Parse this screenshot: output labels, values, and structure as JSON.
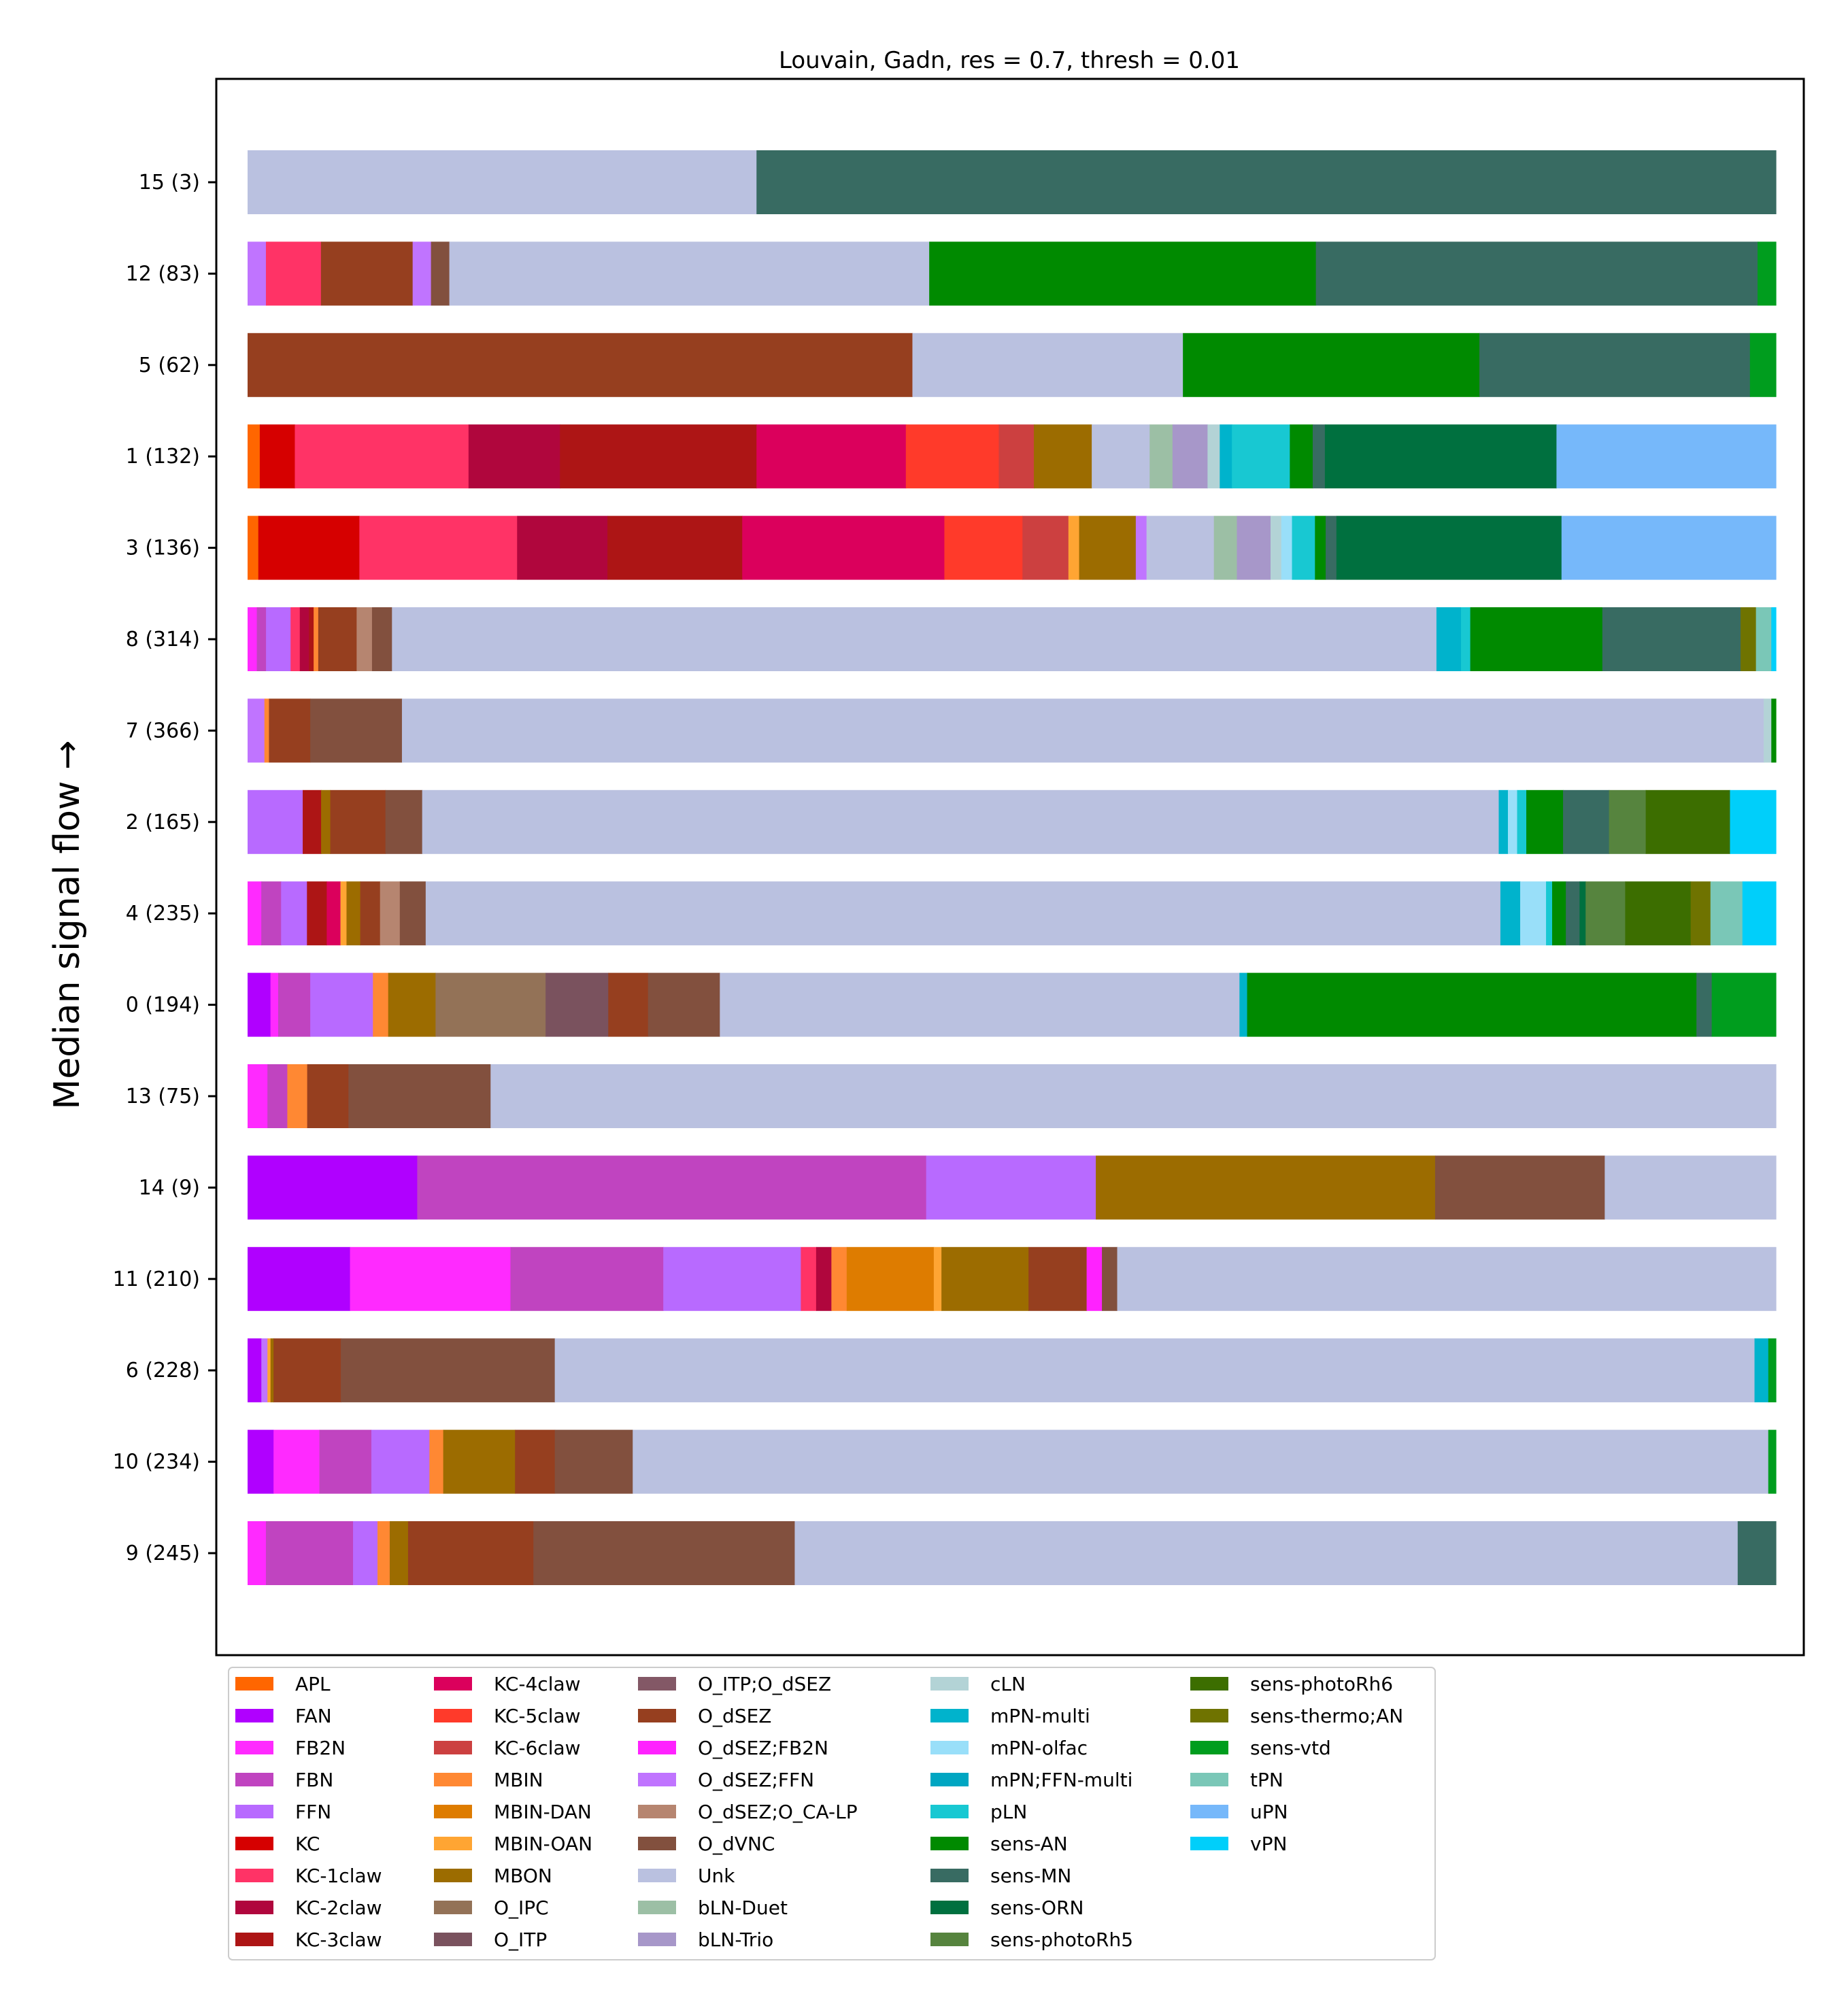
{
  "chart_data": {
    "type": "bar",
    "orientation": "horizontal",
    "stacked": true,
    "normalized": true,
    "title": "Louvain, Gadn, res = 0.7, thresh = 0.01",
    "ylabel": "Median signal flow →",
    "xlabel": "",
    "xlim": [
      0,
      1
    ],
    "grid": false,
    "legend_position": "bottom",
    "legend": [
      {
        "name": "APL",
        "color": "#ff6600"
      },
      {
        "name": "FAN",
        "color": "#b000ff"
      },
      {
        "name": "FB2N",
        "color": "#ff2aff"
      },
      {
        "name": "FBN",
        "color": "#c044c0"
      },
      {
        "name": "FFN",
        "color": "#b86aff"
      },
      {
        "name": "KC",
        "color": "#d60000"
      },
      {
        "name": "KC-1claw",
        "color": "#ff3366"
      },
      {
        "name": "KC-2claw",
        "color": "#b0063d"
      },
      {
        "name": "KC-3claw",
        "color": "#ad1515"
      },
      {
        "name": "KC-4claw",
        "color": "#db005c"
      },
      {
        "name": "KC-5claw",
        "color": "#ff3a2a"
      },
      {
        "name": "KC-6claw",
        "color": "#cc4040"
      },
      {
        "name": "MBIN",
        "color": "#ff8833"
      },
      {
        "name": "MBIN-DAN",
        "color": "#de7c00"
      },
      {
        "name": "MBIN-OAN",
        "color": "#ffa533"
      },
      {
        "name": "MBON",
        "color": "#9c6c00"
      },
      {
        "name": "O_IPC",
        "color": "#937257"
      },
      {
        "name": "O_ITP",
        "color": "#7a525e"
      },
      {
        "name": "O_ITP;O_dSEZ",
        "color": "#835866"
      },
      {
        "name": "O_dSEZ",
        "color": "#963f1f"
      },
      {
        "name": "O_dSEZ;FB2N",
        "color": "#ff22ff"
      },
      {
        "name": "O_dSEZ;FFN",
        "color": "#c074ff"
      },
      {
        "name": "O_dSEZ;O_CA-LP",
        "color": "#b68570"
      },
      {
        "name": "O_dVNC",
        "color": "#82503e"
      },
      {
        "name": "Unk",
        "color": "#bac1e0"
      },
      {
        "name": "bLN-Duet",
        "color": "#9cbfa5"
      },
      {
        "name": "bLN-Trio",
        "color": "#a797c9"
      },
      {
        "name": "cLN",
        "color": "#b3d3d6"
      },
      {
        "name": "mPN-multi",
        "color": "#00b3cc"
      },
      {
        "name": "mPN-olfac",
        "color": "#99dff9"
      },
      {
        "name": "mPN;FFN-multi",
        "color": "#00a6c2"
      },
      {
        "name": "pLN",
        "color": "#18c8d2"
      },
      {
        "name": "sens-AN",
        "color": "#008a00"
      },
      {
        "name": "sens-MN",
        "color": "#386b62"
      },
      {
        "name": "sens-ORN",
        "color": "#00703f"
      },
      {
        "name": "sens-photoRh5",
        "color": "#56843e"
      },
      {
        "name": "sens-photoRh6",
        "color": "#3c6e00"
      },
      {
        "name": "sens-thermo;AN",
        "color": "#6f7300"
      },
      {
        "name": "sens-vtd",
        "color": "#009d1e"
      },
      {
        "name": "tPN",
        "color": "#7ac7b7"
      },
      {
        "name": "uPN",
        "color": "#76b8fa"
      },
      {
        "name": "vPN",
        "color": "#00cffa"
      }
    ],
    "categories": [
      "15 (3)",
      "12 (83)",
      "5 (62)",
      "1 (132)",
      "3 (136)",
      "8 (314)",
      "7 (366)",
      "2 (165)",
      "4 (235)",
      "0 (194)",
      "13 (75)",
      "14 (9)",
      "11 (210)",
      "6 (228)",
      "10 (234)",
      "9 (245)"
    ],
    "bars": [
      [
        [
          "Unk",
          0.333
        ],
        [
          "sens-MN",
          0.667
        ]
      ],
      [
        [
          "O_dSEZ;FFN",
          0.012
        ],
        [
          "KC-1claw",
          0.036
        ],
        [
          "O_dSEZ",
          0.06
        ],
        [
          "O_dSEZ;FFN",
          0.012
        ],
        [
          "O_dVNC",
          0.012
        ],
        [
          "Unk",
          0.314
        ],
        [
          "sens-AN",
          0.253
        ],
        [
          "sens-MN",
          0.289
        ],
        [
          "sens-vtd",
          0.012
        ]
      ],
      [
        [
          "O_dSEZ",
          0.435
        ],
        [
          "Unk",
          0.177
        ],
        [
          "sens-AN",
          0.194
        ],
        [
          "sens-MN",
          0.177
        ],
        [
          "sens-vtd",
          0.017
        ]
      ],
      [
        [
          "APL",
          0.008
        ],
        [
          "KC",
          0.023
        ],
        [
          "KC-1claw",
          0.114
        ],
        [
          "KC-2claw",
          0.06
        ],
        [
          "KC-3claw",
          0.129
        ],
        [
          "KC-4claw",
          0.098
        ],
        [
          "KC-5claw",
          0.061
        ],
        [
          "KC-6claw",
          0.023
        ],
        [
          "MBON",
          0.038
        ],
        [
          "Unk",
          0.038
        ],
        [
          "bLN-Duet",
          0.015
        ],
        [
          "bLN-Trio",
          0.023
        ],
        [
          "cLN",
          0.008
        ],
        [
          "mPN-multi",
          0.008
        ],
        [
          "pLN",
          0.038
        ],
        [
          "sens-AN",
          0.015
        ],
        [
          "sens-MN",
          0.008
        ],
        [
          "sens-ORN",
          0.152
        ],
        [
          "uPN",
          0.144
        ]
      ],
      [
        [
          "APL",
          0.007
        ],
        [
          "KC",
          0.066
        ],
        [
          "KC-1claw",
          0.103
        ],
        [
          "KC-2claw",
          0.059
        ],
        [
          "KC-3claw",
          0.088
        ],
        [
          "KC-4claw",
          0.132
        ],
        [
          "KC-5claw",
          0.051
        ],
        [
          "KC-6claw",
          0.03
        ],
        [
          "MBIN-OAN",
          0.007
        ],
        [
          "MBON",
          0.037
        ],
        [
          "O_dSEZ;FFN",
          0.007
        ],
        [
          "Unk",
          0.044
        ],
        [
          "bLN-Duet",
          0.015
        ],
        [
          "bLN-Trio",
          0.022
        ],
        [
          "cLN",
          0.007
        ],
        [
          "mPN-olfac",
          0.007
        ],
        [
          "pLN",
          0.015
        ],
        [
          "sens-AN",
          0.007
        ],
        [
          "sens-MN",
          0.007
        ],
        [
          "sens-ORN",
          0.147
        ],
        [
          "uPN",
          0.14
        ]
      ],
      [
        [
          "FB2N",
          0.006
        ],
        [
          "FBN",
          0.006
        ],
        [
          "FFN",
          0.016
        ],
        [
          "KC-1claw",
          0.006
        ],
        [
          "KC-2claw",
          0.006
        ],
        [
          "KC-3claw",
          0.003
        ],
        [
          "MBIN",
          0.003
        ],
        [
          "O_dSEZ",
          0.025
        ],
        [
          "O_dSEZ;O_CA-LP",
          0.01
        ],
        [
          "O_dVNC",
          0.013
        ],
        [
          "Unk",
          0.68
        ],
        [
          "mPN-multi",
          0.016
        ],
        [
          "pLN",
          0.006
        ],
        [
          "sens-AN",
          0.086
        ],
        [
          "sens-MN",
          0.09
        ],
        [
          "sens-thermo;AN",
          0.01
        ],
        [
          "tPN",
          0.01
        ],
        [
          "vPN",
          0.003
        ]
      ],
      [
        [
          "O_dSEZ;FFN",
          0.011
        ],
        [
          "MBIN",
          0.003
        ],
        [
          "O_dSEZ",
          0.027
        ],
        [
          "O_dVNC",
          0.06
        ],
        [
          "Unk",
          0.891
        ],
        [
          "cLN",
          0.005
        ],
        [
          "sens-AN",
          0.003
        ]
      ],
      [
        [
          "FFN",
          0.036
        ],
        [
          "KC-3claw",
          0.012
        ],
        [
          "MBON",
          0.006
        ],
        [
          "O_dSEZ",
          0.036
        ],
        [
          "O_dVNC",
          0.024
        ],
        [
          "Unk",
          0.703
        ],
        [
          "mPN-multi",
          0.006
        ],
        [
          "mPN-olfac",
          0.006
        ],
        [
          "pLN",
          0.006
        ],
        [
          "sens-AN",
          0.024
        ],
        [
          "sens-MN",
          0.03
        ],
        [
          "sens-photoRh5",
          0.024
        ],
        [
          "sens-photoRh6",
          0.055
        ],
        [
          "vPN",
          0.03
        ]
      ],
      [
        [
          "FB2N",
          0.009
        ],
        [
          "FBN",
          0.013
        ],
        [
          "FFN",
          0.017
        ],
        [
          "KC-3claw",
          0.013
        ],
        [
          "KC-4claw",
          0.009
        ],
        [
          "MBIN-OAN",
          0.004
        ],
        [
          "MBON",
          0.009
        ],
        [
          "O_dSEZ",
          0.013
        ],
        [
          "O_dSEZ;O_CA-LP",
          0.013
        ],
        [
          "O_dVNC",
          0.017
        ],
        [
          "Unk",
          0.706
        ],
        [
          "mPN-multi",
          0.013
        ],
        [
          "mPN-olfac",
          0.017
        ],
        [
          "pLN",
          0.004
        ],
        [
          "sens-AN",
          0.009
        ],
        [
          "sens-MN",
          0.009
        ],
        [
          "sens-ORN",
          0.004
        ],
        [
          "sens-photoRh5",
          0.026
        ],
        [
          "sens-photoRh6",
          0.043
        ],
        [
          "sens-thermo;AN",
          0.013
        ],
        [
          "tPN",
          0.021
        ],
        [
          "vPN",
          0.022
        ]
      ],
      [
        [
          "FAN",
          0.015
        ],
        [
          "FB2N",
          0.005
        ],
        [
          "FBN",
          0.021
        ],
        [
          "FFN",
          0.041
        ],
        [
          "MBIN",
          0.01
        ],
        [
          "MBON",
          0.031
        ],
        [
          "O_IPC",
          0.072
        ],
        [
          "O_ITP",
          0.041
        ],
        [
          "O_dSEZ",
          0.026
        ],
        [
          "O_dVNC",
          0.047
        ],
        [
          "Unk",
          0.34
        ],
        [
          "mPN-multi",
          0.005
        ],
        [
          "sens-AN",
          0.294
        ],
        [
          "sens-MN",
          0.01
        ],
        [
          "sens-vtd",
          0.042
        ]
      ],
      [
        [
          "FB2N",
          0.013
        ],
        [
          "FBN",
          0.013
        ],
        [
          "MBIN",
          0.013
        ],
        [
          "O_dSEZ",
          0.027
        ],
        [
          "O_dVNC",
          0.093
        ],
        [
          "Unk",
          0.841
        ]
      ],
      [
        [
          "FAN",
          0.111
        ],
        [
          "FBN",
          0.333
        ],
        [
          "FFN",
          0.111
        ],
        [
          "MBON",
          0.222
        ],
        [
          "O_dVNC",
          0.111
        ],
        [
          "Unk",
          0.112
        ]
      ],
      [
        [
          "FAN",
          0.067
        ],
        [
          "FB2N",
          0.105
        ],
        [
          "FBN",
          0.1
        ],
        [
          "FFN",
          0.09
        ],
        [
          "KC-1claw",
          0.01
        ],
        [
          "KC-2claw",
          0.01
        ],
        [
          "MBIN",
          0.01
        ],
        [
          "MBIN-DAN",
          0.057
        ],
        [
          "MBIN-OAN",
          0.005
        ],
        [
          "MBON",
          0.057
        ],
        [
          "O_dSEZ",
          0.038
        ],
        [
          "O_dSEZ;FB2N",
          0.01
        ],
        [
          "O_dVNC",
          0.01
        ],
        [
          "Unk",
          0.431
        ]
      ],
      [
        [
          "FAN",
          0.009
        ],
        [
          "O_dSEZ;FFN",
          0.004
        ],
        [
          "MBIN-OAN",
          0.002
        ],
        [
          "MBON",
          0.002
        ],
        [
          "O_dSEZ",
          0.044
        ],
        [
          "O_dVNC",
          0.14
        ],
        [
          "Unk",
          0.785
        ],
        [
          "mPN-multi",
          0.009
        ],
        [
          "sens-vtd",
          0.005
        ]
      ],
      [
        [
          "FAN",
          0.017
        ],
        [
          "FB2N",
          0.03
        ],
        [
          "FBN",
          0.034
        ],
        [
          "FFN",
          0.038
        ],
        [
          "MBIN",
          0.009
        ],
        [
          "MBON",
          0.047
        ],
        [
          "O_dSEZ",
          0.026
        ],
        [
          "O_dVNC",
          0.051
        ],
        [
          "Unk",
          0.743
        ],
        [
          "sens-vtd",
          0.005
        ]
      ],
      [
        [
          "FB2N",
          0.012
        ],
        [
          "FBN",
          0.057
        ],
        [
          "FFN",
          0.016
        ],
        [
          "MBIN",
          0.008
        ],
        [
          "MBON",
          0.012
        ],
        [
          "O_dSEZ",
          0.082
        ],
        [
          "O_dVNC",
          0.171
        ],
        [
          "Unk",
          0.617
        ],
        [
          "sens-MN",
          0.025
        ]
      ]
    ]
  }
}
